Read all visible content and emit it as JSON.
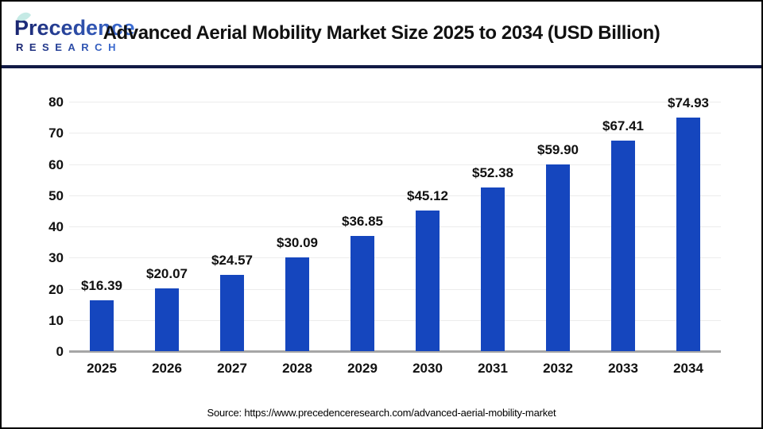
{
  "logo": {
    "name": "Precedence",
    "subtitle": "RESEARCH"
  },
  "header": {
    "title": "Advanced Aerial Mobility Market Size 2025 to 2034 (USD Billion)"
  },
  "footer": {
    "source": "Source: https://www.precedenceresearch.com/advanced-aerial-mobility-market"
  },
  "colors": {
    "bar": "#1546BE",
    "divider": "#111A45",
    "gridline": "#ECECEC",
    "baseline": "#A6A6A6",
    "logo_dark": "#1A2570",
    "logo_light": "#3D6FD6",
    "leaf": "#BFE8E2"
  },
  "chart_data": {
    "type": "bar",
    "title": "Advanced Aerial Mobility Market Size 2025 to 2034 (USD Billion)",
    "categories": [
      "2025",
      "2026",
      "2027",
      "2028",
      "2029",
      "2030",
      "2031",
      "2032",
      "2033",
      "2034"
    ],
    "values": [
      16.39,
      20.07,
      24.57,
      30.09,
      36.85,
      45.12,
      52.38,
      59.9,
      67.41,
      74.93
    ],
    "value_labels": [
      "$16.39",
      "$20.07",
      "$24.57",
      "$30.09",
      "$36.85",
      "$45.12",
      "$52.38",
      "$59.90",
      "$67.41",
      "$74.93"
    ],
    "xlabel": "",
    "ylabel": "",
    "ylim": [
      0,
      80
    ],
    "yticks": [
      0,
      10,
      20,
      30,
      40,
      50,
      60,
      70,
      80
    ],
    "grid": true,
    "legend": false,
    "bar_color": "#1546BE"
  }
}
